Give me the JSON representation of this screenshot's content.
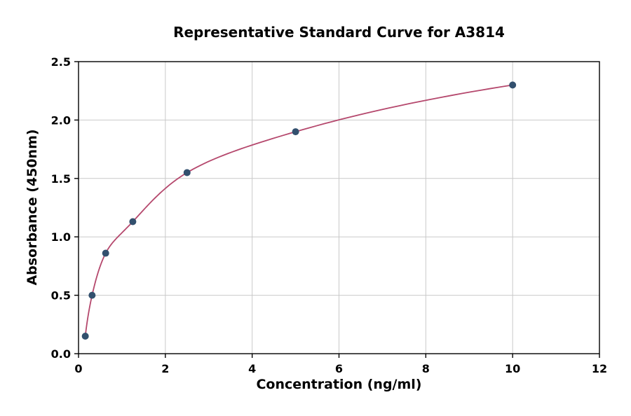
{
  "page": {
    "background": "#ffffff"
  },
  "chart_data": {
    "type": "scatter",
    "title": "Representative Standard Curve for A3814",
    "xlabel": "Concentration (ng/ml)",
    "ylabel": "Absorbance (450nm)",
    "xlim": [
      0,
      12
    ],
    "ylim": [
      0,
      2.5
    ],
    "xticks": [
      0,
      2,
      4,
      6,
      8,
      10,
      12
    ],
    "yticks": [
      0.0,
      0.5,
      1.0,
      1.5,
      2.0,
      2.5
    ],
    "grid": true,
    "legend": "none",
    "points": [
      {
        "x": 0.156,
        "y": 0.15
      },
      {
        "x": 0.3125,
        "y": 0.5
      },
      {
        "x": 0.625,
        "y": 0.86
      },
      {
        "x": 1.25,
        "y": 1.13
      },
      {
        "x": 2.5,
        "y": 1.55
      },
      {
        "x": 5,
        "y": 1.9
      },
      {
        "x": 10,
        "y": 2.3
      }
    ],
    "curve": "smooth fit through points",
    "colors": {
      "curve": "#b5486d",
      "point": "#32506e",
      "grid": "#c9c9c9",
      "axis": "#000000"
    }
  }
}
